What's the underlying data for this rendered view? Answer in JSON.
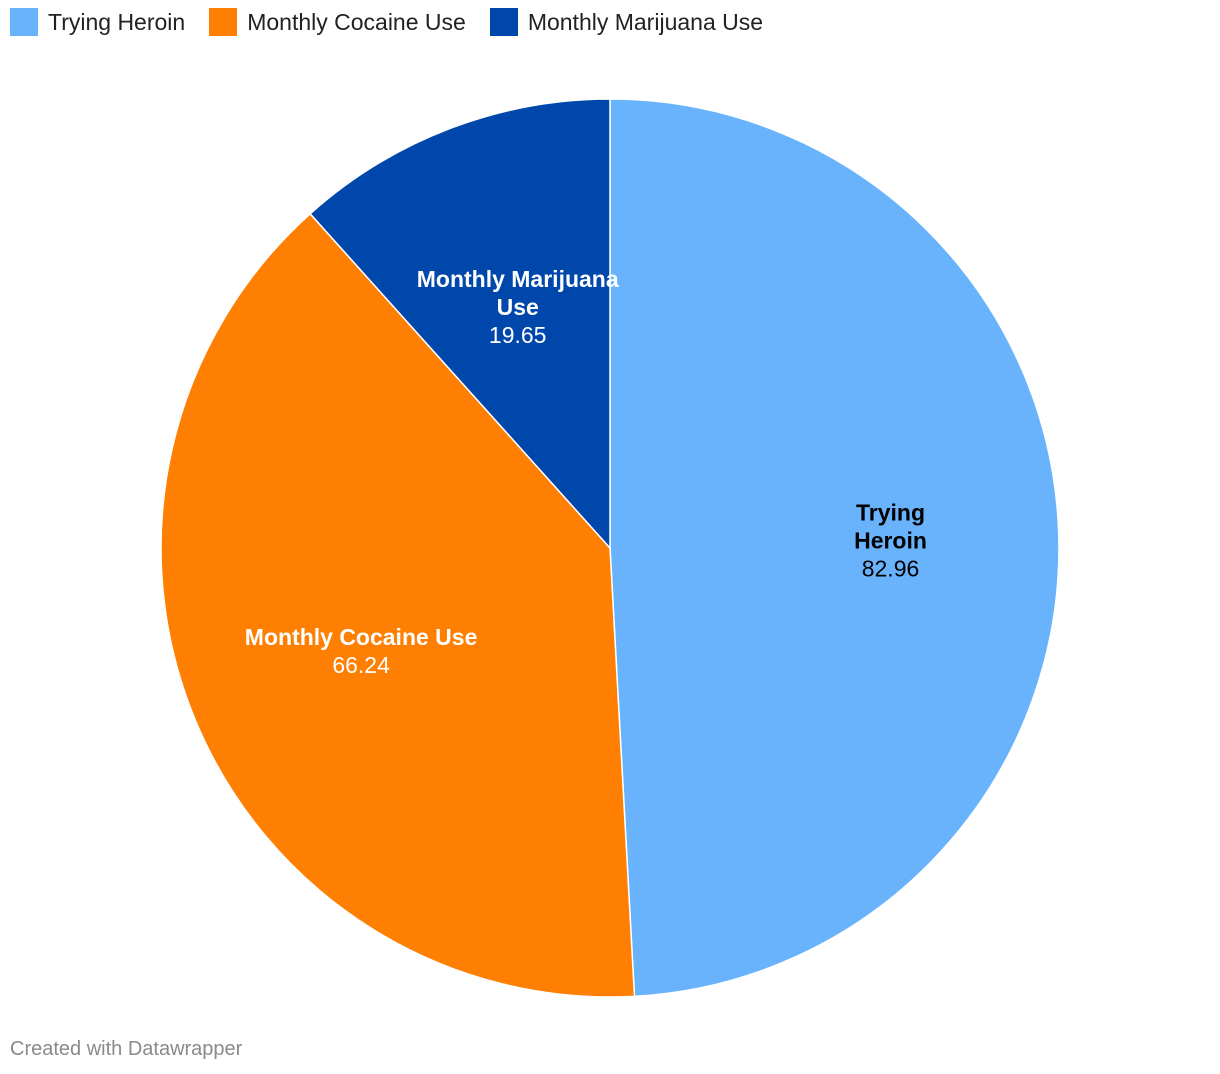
{
  "chart_data": {
    "type": "pie",
    "categories": [
      "Trying Heroin",
      "Monthly Cocaine Use",
      "Monthly Marijuana Use"
    ],
    "values": [
      82.96,
      66.24,
      19.65
    ],
    "value_labels": [
      "82.96",
      "66.24",
      "19.65"
    ],
    "colors": [
      "#69b3fd",
      "#fe7f01",
      "#0047ab"
    ],
    "label_colors": [
      "#000000",
      "#ffffff",
      "#ffffff"
    ],
    "label_lines": [
      [
        "Trying",
        "Heroin"
      ],
      [
        "Monthly Cocaine Use"
      ],
      [
        "Monthly Marijuana",
        "Use"
      ]
    ],
    "start_angle_deg": 0,
    "direction": "clockwise",
    "legend_placement": "top-left"
  },
  "legend": {
    "items": [
      {
        "label": "Trying Heroin",
        "color": "#69b3fd"
      },
      {
        "label": "Monthly Cocaine Use",
        "color": "#fe7f01"
      },
      {
        "label": "Monthly Marijuana Use",
        "color": "#0047ab"
      }
    ]
  },
  "footer": {
    "credit": "Created with Datawrapper"
  }
}
